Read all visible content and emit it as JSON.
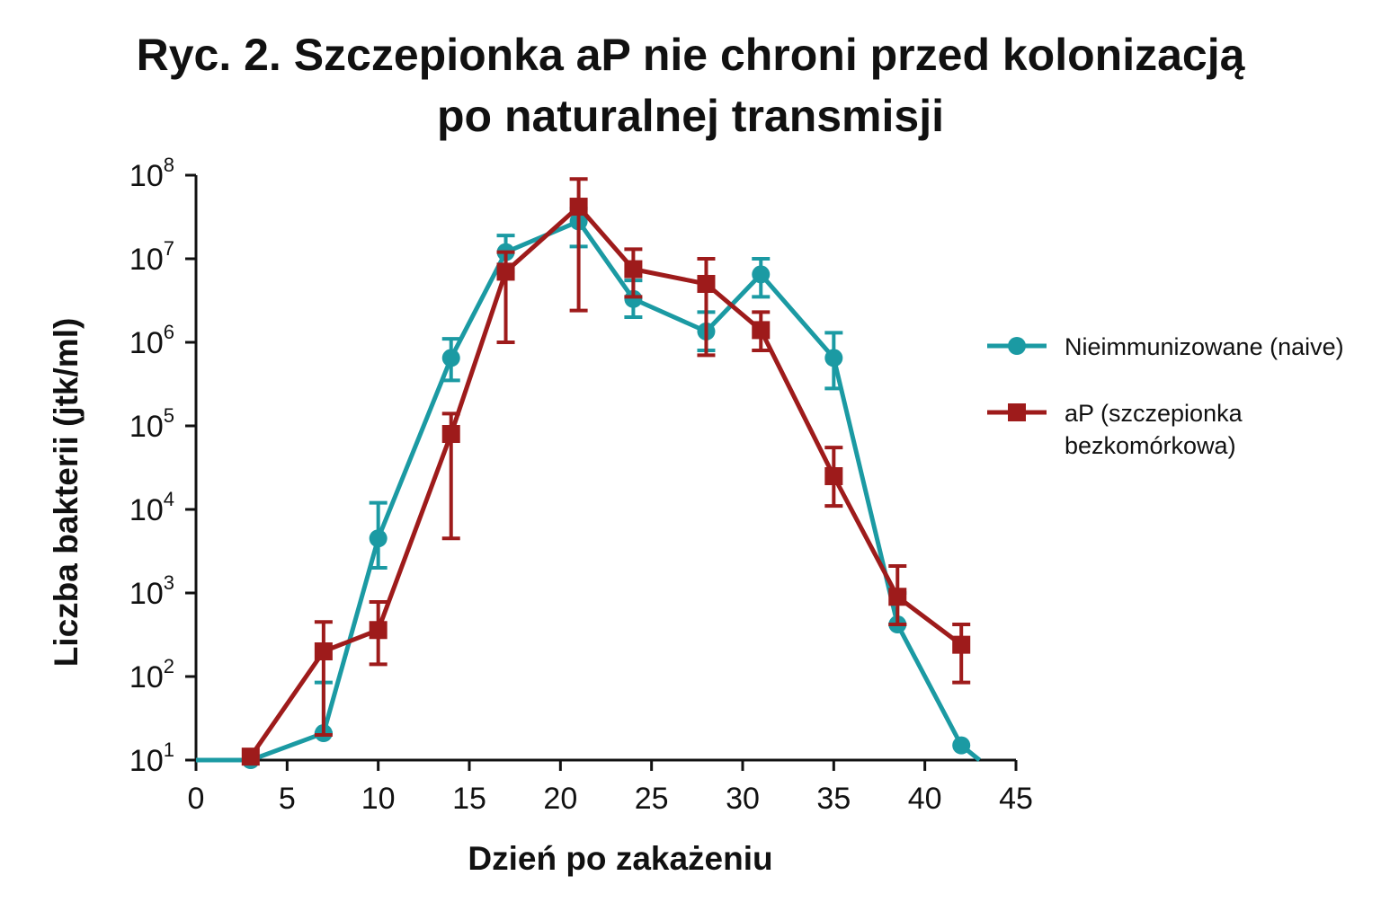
{
  "chart_data": {
    "type": "line",
    "title": "Ryc. 2. Szczepionka aP nie chroni przed kolonizacją",
    "subtitle": "po naturalnej transmisji",
    "xlabel": "Dzień po zakażeniu",
    "ylabel": "Liczba bakterii (jtk/ml)",
    "xlim": [
      0,
      45
    ],
    "ylim": [
      10,
      100000000
    ],
    "yscale": "log",
    "x_ticks": [
      0,
      5,
      10,
      15,
      20,
      25,
      30,
      35,
      40,
      45
    ],
    "y_ticks": [
      {
        "value": 10,
        "base": "10",
        "exp": "1"
      },
      {
        "value": 100,
        "base": "10",
        "exp": "2"
      },
      {
        "value": 1000,
        "base": "10",
        "exp": "3"
      },
      {
        "value": 10000,
        "base": "10",
        "exp": "4"
      },
      {
        "value": 100000,
        "base": "10",
        "exp": "5"
      },
      {
        "value": 1000000,
        "base": "10",
        "exp": "6"
      },
      {
        "value": 10000000,
        "base": "10",
        "exp": "7"
      },
      {
        "value": 100000000,
        "base": "10",
        "exp": "8"
      }
    ],
    "grid": false,
    "legend_position": "right",
    "series": [
      {
        "name": "Nieimmunizowane (naive)",
        "color": "#1b9aa3",
        "marker": "circle",
        "points": [
          {
            "x": 0,
            "y": 10
          },
          {
            "x": 3,
            "y": 10
          },
          {
            "x": 7,
            "y": 21,
            "err_hi": 85,
            "err_lo": 21
          },
          {
            "x": 10,
            "y": 4500,
            "err_hi": 12000,
            "err_lo": 2000
          },
          {
            "x": 14,
            "y": 650000,
            "err_hi": 1100000,
            "err_lo": 350000
          },
          {
            "x": 17,
            "y": 12000000,
            "err_hi": 19000000,
            "err_lo": 7000000
          },
          {
            "x": 21,
            "y": 28000000,
            "err_hi": 40000000,
            "err_lo": 14000000
          },
          {
            "x": 24,
            "y": 3300000,
            "err_hi": 5500000,
            "err_lo": 2000000
          },
          {
            "x": 28,
            "y": 1350000,
            "err_hi": 2300000,
            "err_lo": 800000
          },
          {
            "x": 31,
            "y": 6500000,
            "err_hi": 10000000,
            "err_lo": 3500000
          },
          {
            "x": 35,
            "y": 650000,
            "err_hi": 1300000,
            "err_lo": 280000
          },
          {
            "x": 38.5,
            "y": 420,
            "err_hi": 1000,
            "err_lo": 420
          },
          {
            "x": 42,
            "y": 15
          },
          {
            "x": 43,
            "y": 10
          }
        ]
      },
      {
        "name": "aP (szczepionka bezkomórkowa)",
        "color": "#9e1b1b",
        "marker": "square",
        "points": [
          {
            "x": 3,
            "y": 11
          },
          {
            "x": 7,
            "y": 200,
            "err_hi": 450,
            "err_lo": 20
          },
          {
            "x": 10,
            "y": 360,
            "err_hi": 780,
            "err_lo": 140
          },
          {
            "x": 14,
            "y": 80000,
            "err_hi": 140000,
            "err_lo": 4500
          },
          {
            "x": 17,
            "y": 7000000,
            "err_hi": 12000000,
            "err_lo": 1000000
          },
          {
            "x": 21,
            "y": 42000000,
            "err_hi": 90000000,
            "err_lo": 2400000
          },
          {
            "x": 24,
            "y": 7500000,
            "err_hi": 13000000,
            "err_lo": 3500000
          },
          {
            "x": 28,
            "y": 5000000,
            "err_hi": 10000000,
            "err_lo": 700000
          },
          {
            "x": 31,
            "y": 1400000,
            "err_hi": 2300000,
            "err_lo": 800000
          },
          {
            "x": 35,
            "y": 25000,
            "err_hi": 55000,
            "err_lo": 11000
          },
          {
            "x": 38.5,
            "y": 900,
            "err_hi": 2100,
            "err_lo": 420
          },
          {
            "x": 42,
            "y": 240,
            "err_hi": 420,
            "err_lo": 85
          }
        ]
      }
    ],
    "legend": [
      {
        "lines": [
          "Nieimmunizowane (naive)"
        ]
      },
      {
        "lines": [
          "aP (szczepionka",
          "bezkomórkowa)"
        ]
      }
    ]
  }
}
